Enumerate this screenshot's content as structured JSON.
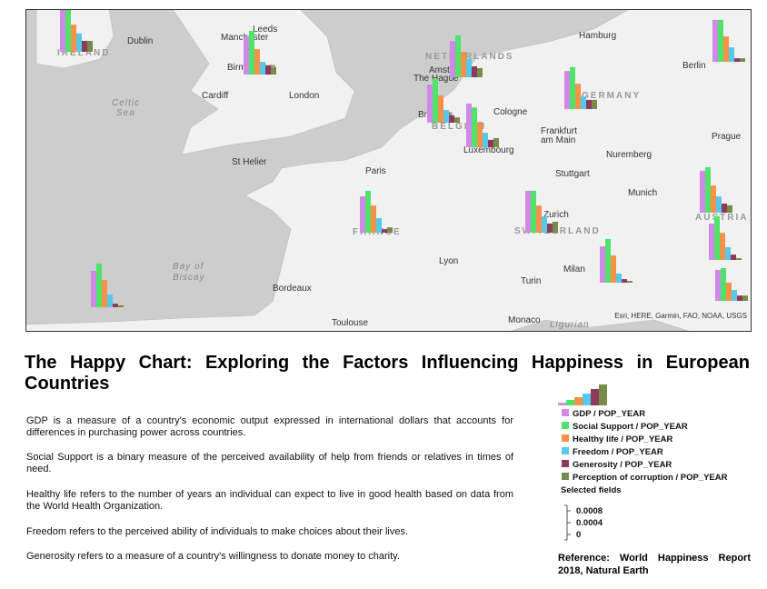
{
  "map": {
    "labels": [
      "Dublin",
      "IRELAND",
      "Leeds",
      "Manchester",
      "Birmingham",
      "Cardiff",
      "London",
      "Celtic",
      "Sea",
      "NETHERLANDS",
      "Amsterdam",
      "The Hague",
      "Hamburg",
      "Berlin",
      "GERMANY",
      "Brussels",
      "BELGIUM",
      "Cologne",
      "Luxembourg",
      "Frankfurt",
      "am Main",
      "Prague",
      "Paris",
      "St Helier",
      "Stuttgart",
      "Nuremberg",
      "Munich",
      "AUSTRIA",
      "FRANCE",
      "Zurich",
      "SWITZERLAND",
      "Lyon",
      "Milan",
      "Turin",
      "Bay of",
      "Biscay",
      "Bordeaux",
      "Toulouse",
      "Monaco",
      "Ligurian"
    ],
    "attribution": "Esri, HERE, Garmin, FAO, NOAA, USGS"
  },
  "chart_data": {
    "type": "bar",
    "title": "The Happy Chart: Exploring the Factors Influencing Happiness in European Countries",
    "series": [
      {
        "name": "GDP / POP_YEAR",
        "color": "#cf8ae6",
        "values": [
          0.00148,
          0.00129,
          0.00123,
          0.00129,
          0.00148,
          0.00129,
          0.00123,
          0.00142,
          0.00142,
          0.00142,
          0.00123,
          0.00123,
          0.00123,
          0.00105
        ]
      },
      {
        "name": "Social Support / POP_YEAR",
        "color": "#4fe36c",
        "values": [
          0.00154,
          0.00148,
          0.00142,
          0.00148,
          0.00135,
          0.00142,
          0.00142,
          0.00142,
          0.00154,
          0.00142,
          0.00148,
          0.00148,
          0.00148,
          0.00111
        ]
      },
      {
        "name": "Healthy life / POP_YEAR",
        "color": "#f5924a",
        "values": [
          0.00092,
          0.00086,
          0.00086,
          0.00092,
          0.00086,
          0.00086,
          0.00092,
          0.00092,
          0.00092,
          0.00086,
          0.00092,
          0.00092,
          0.00092,
          0.00062
        ]
      },
      {
        "name": "Freedom / POP_YEAR",
        "color": "#56c9e8",
        "values": [
          0.00062,
          0.00043,
          0.00062,
          0.00043,
          0.00049,
          0.00043,
          0.00049,
          0.00055,
          0.00055,
          0.00049,
          0.00043,
          0.00031,
          0.00043,
          0.00037
        ]
      },
      {
        "name": "Generosity / POP_YEAR",
        "color": "#8e3a5c",
        "values": [
          0.00037,
          0.00031,
          0.00037,
          0.00025,
          0.00025,
          0.00031,
          0.00012,
          0.00031,
          0.00031,
          0.00012,
          0.00012,
          0.00012,
          0.00018,
          0.00018
        ]
      },
      {
        "name": "Perception of corruption / POP_YEAR",
        "color": "#768c4b",
        "values": [
          0.00037,
          0.00025,
          0.00031,
          0.00018,
          0.00031,
          0.00031,
          0.00018,
          0.00037,
          0.00025,
          0.00012,
          6e-05,
          6e-05,
          6e-05,
          0.00018
        ]
      }
    ],
    "legend_heading": "Selected fields",
    "ylim": [
      0,
      0.0008
    ],
    "yticks": [
      0.0008,
      0.0004,
      0
    ]
  },
  "descriptions": [
    "GDP is a measure of a country's economic output expressed in international dollars that accounts for differences in purchasing power across countries.",
    "Social Support is a binary measure of the perceived availability of help from friends or relatives in times of need.",
    "Healthy life refers to the number of years an individual can expect to live in good health based on data from the World Health Organization.",
    "Freedom refers to the perceived ability of individuals to make choices about their lives.",
    "Generosity refers to a measure of a country's willingness to donate money to charity."
  ],
  "reference": "Reference: World Happiness Report 2018, Natural Earth"
}
